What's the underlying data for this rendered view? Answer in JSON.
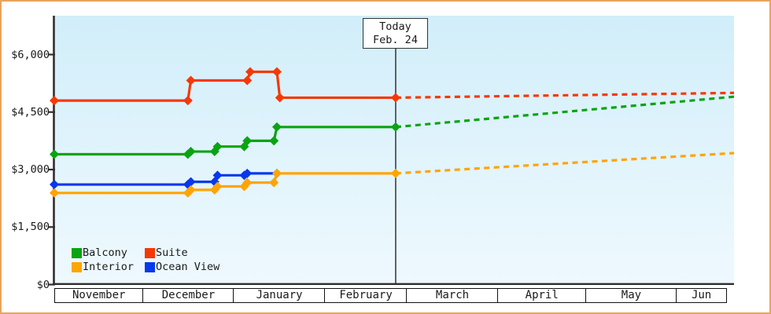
{
  "chart_data": {
    "type": "line",
    "description": "Price history by cabin category with dashed price projection after today",
    "currency": "USD",
    "y_axis": {
      "ticks": [
        {
          "label": "$0",
          "value": 0
        },
        {
          "label": "$1,500",
          "value": 1500
        },
        {
          "label": "$3,000",
          "value": 3000
        },
        {
          "label": "$4,500",
          "value": 4500
        },
        {
          "label": "$6,000",
          "value": 6000
        }
      ],
      "range": [
        0,
        7000
      ],
      "grid": false
    },
    "x_axis": {
      "months": [
        {
          "label": "November",
          "days": 30
        },
        {
          "label": "December",
          "days": 31
        },
        {
          "label": "January",
          "days": 31
        },
        {
          "label": "February",
          "days": 28
        },
        {
          "label": "March",
          "days": 31
        },
        {
          "label": "April",
          "days": 30
        },
        {
          "label": "May",
          "days": 31
        },
        {
          "label": "Jun",
          "days": 17
        }
      ],
      "total_days": 229
    },
    "today_marker": {
      "line1": "Today",
      "line2": "Feb. 24",
      "day": 115
    },
    "series": [
      {
        "name": "Suite",
        "color": "#f53806",
        "points": [
          {
            "date": "Nov 1",
            "day": 0,
            "price": 4800
          },
          {
            "date": "Dec 16",
            "day": 45,
            "price": 4800
          },
          {
            "date": "Dec 17",
            "day": 46,
            "price": 5325
          },
          {
            "date": "Jan 5",
            "day": 65,
            "price": 5325
          },
          {
            "date": "Jan 6",
            "day": 66,
            "price": 5550
          },
          {
            "date": "Jan 15",
            "day": 75,
            "price": 5550
          },
          {
            "date": "Jan 16",
            "day": 76,
            "price": 4875
          },
          {
            "date": "Feb 24",
            "day": 115,
            "price": 4875
          }
        ],
        "projection": [
          {
            "date": "Feb 24",
            "day": 115,
            "price": 4875
          },
          {
            "date": "Jun 18",
            "day": 229,
            "price": 5000
          }
        ]
      },
      {
        "name": "Balcony",
        "color": "#0aa412",
        "points": [
          {
            "date": "Nov 1",
            "day": 0,
            "price": 3400
          },
          {
            "date": "Dec 16",
            "day": 45,
            "price": 3400
          },
          {
            "date": "Dec 17",
            "day": 46,
            "price": 3470
          },
          {
            "date": "Dec 25",
            "day": 54,
            "price": 3470
          },
          {
            "date": "Dec 26",
            "day": 55,
            "price": 3600
          },
          {
            "date": "Jan 4",
            "day": 64,
            "price": 3600
          },
          {
            "date": "Jan 5",
            "day": 65,
            "price": 3750
          },
          {
            "date": "Jan 14",
            "day": 74,
            "price": 3750
          },
          {
            "date": "Jan 15",
            "day": 75,
            "price": 4110
          },
          {
            "date": "Feb 24",
            "day": 115,
            "price": 4110
          }
        ],
        "projection": [
          {
            "date": "Feb 24",
            "day": 115,
            "price": 4110
          },
          {
            "date": "Jun 18",
            "day": 229,
            "price": 4900
          }
        ]
      },
      {
        "name": "Ocean View",
        "color": "#0838ec",
        "points": [
          {
            "date": "Nov 1",
            "day": 0,
            "price": 2610
          },
          {
            "date": "Dec 16",
            "day": 45,
            "price": 2610
          },
          {
            "date": "Dec 17",
            "day": 46,
            "price": 2680
          },
          {
            "date": "Dec 25",
            "day": 54,
            "price": 2680
          },
          {
            "date": "Dec 26",
            "day": 55,
            "price": 2850
          },
          {
            "date": "Jan 4",
            "day": 64,
            "price": 2850
          },
          {
            "date": "Jan 5",
            "day": 65,
            "price": 2900
          },
          {
            "date": "Jan 15",
            "day": 75,
            "price": 2900
          }
        ],
        "projection": []
      },
      {
        "name": "Interior",
        "color": "#ffa405",
        "points": [
          {
            "date": "Nov 1",
            "day": 0,
            "price": 2390
          },
          {
            "date": "Dec 16",
            "day": 45,
            "price": 2390
          },
          {
            "date": "Dec 17",
            "day": 46,
            "price": 2470
          },
          {
            "date": "Dec 25",
            "day": 54,
            "price": 2470
          },
          {
            "date": "Dec 26",
            "day": 55,
            "price": 2560
          },
          {
            "date": "Jan 4",
            "day": 64,
            "price": 2560
          },
          {
            "date": "Jan 5",
            "day": 65,
            "price": 2660
          },
          {
            "date": "Jan 14",
            "day": 74,
            "price": 2660
          },
          {
            "date": "Jan 15",
            "day": 75,
            "price": 2900
          },
          {
            "date": "Feb 24",
            "day": 115,
            "price": 2900
          }
        ],
        "projection": [
          {
            "date": "Feb 24",
            "day": 115,
            "price": 2900
          },
          {
            "date": "Jun 18",
            "day": 229,
            "price": 3430
          }
        ]
      }
    ],
    "legend": {
      "position": "bottom-left-inside-plot",
      "items": [
        {
          "label": "Balcony",
          "color": "#0aa412"
        },
        {
          "label": "Suite",
          "color": "#f53806"
        },
        {
          "label": "Interior",
          "color": "#ffa405"
        },
        {
          "label": "Ocean View",
          "color": "#0838ec"
        }
      ]
    }
  },
  "colors": {
    "frame_border": "#e9a45c",
    "axis": "#2f2f2f",
    "today_line": "#333333",
    "plot_bg_top": "#d1eefa",
    "plot_bg_bottom": "#eef9fe",
    "table_border": "#111111",
    "text": "#1a1a1a"
  }
}
